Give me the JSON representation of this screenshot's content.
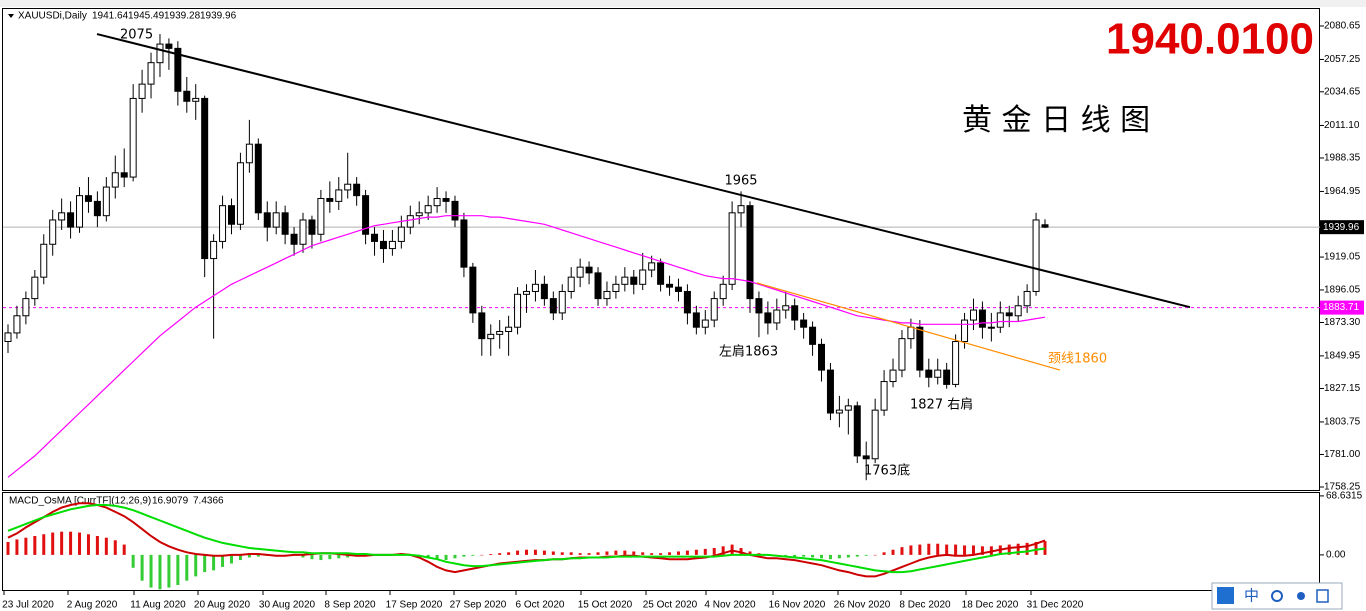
{
  "chart_data": {
    "type": "candlestick",
    "symbol": "XAUUSDi,Daily",
    "title": "黄 金 日 线 图",
    "price_banner": "1940.0100",
    "up_color": "#ffffff",
    "down_color": "#000000",
    "outline_color": "#000000",
    "ylim": [
      1758.25,
      2080.65
    ],
    "yticks": [
      2080.65,
      2057.25,
      2034.65,
      {
        "value": 2011.1,
        "label": "2011.10"
      },
      1988.35,
      1964.95,
      1919.05,
      1896.05,
      {
        "value": 1873.3,
        "label": "1873.30"
      },
      1849.95,
      1827.15,
      1803.75,
      {
        "value": 1781,
        "label": "1781.00"
      },
      1758.25
    ],
    "x_labels": [
      "23 Jul 2020",
      "2 Aug 2020",
      "11 Aug 2020",
      "20 Aug 2020",
      "30 Aug 2020",
      "8 Sep 2020",
      "17 Sep 2020",
      "27 Sep 2020",
      "6 Oct 2020",
      "15 Oct 2020",
      "25 Oct 2020",
      "4 Nov 2020",
      "16 Nov 2020",
      "26 Nov 2020",
      "8 Dec 2020",
      "18 Dec 2020",
      "31 Dec 2020"
    ],
    "ohlc": [
      [
        1860,
        1872,
        1852,
        1866
      ],
      [
        1866,
        1885,
        1862,
        1878
      ],
      [
        1878,
        1895,
        1872,
        1890
      ],
      [
        1890,
        1910,
        1885,
        1905
      ],
      [
        1905,
        1935,
        1900,
        1928
      ],
      [
        1928,
        1952,
        1920,
        1945
      ],
      [
        1945,
        1960,
        1938,
        1950
      ],
      [
        1950,
        1958,
        1932,
        1940
      ],
      [
        1940,
        1968,
        1936,
        1962
      ],
      [
        1962,
        1975,
        1950,
        1958
      ],
      [
        1958,
        1965,
        1940,
        1948
      ],
      [
        1948,
        1975,
        1944,
        1968
      ],
      [
        1968,
        1990,
        1960,
        1978
      ],
      [
        1978,
        1995,
        1968,
        1975
      ],
      [
        1975,
        2040,
        1972,
        2030
      ],
      [
        2030,
        2050,
        2020,
        2040
      ],
      [
        2040,
        2062,
        2030,
        2055
      ],
      [
        2055,
        2075,
        2045,
        2068
      ],
      [
        2068,
        2072,
        2050,
        2065
      ],
      [
        2065,
        2070,
        2025,
        2035
      ],
      [
        2035,
        2045,
        2020,
        2028
      ],
      [
        2028,
        2040,
        2015,
        2030
      ],
      [
        2030,
        2032,
        1905,
        1918
      ],
      [
        1918,
        1935,
        1862,
        1930
      ],
      [
        1930,
        1962,
        1925,
        1955
      ],
      [
        1955,
        1960,
        1935,
        1942
      ],
      [
        1942,
        1992,
        1938,
        1985
      ],
      [
        1985,
        2015,
        1978,
        1998
      ],
      [
        1998,
        2002,
        1945,
        1950
      ],
      [
        1950,
        1958,
        1930,
        1940
      ],
      [
        1940,
        1958,
        1935,
        1950
      ],
      [
        1950,
        1955,
        1928,
        1935
      ],
      [
        1935,
        1940,
        1920,
        1928
      ],
      [
        1928,
        1950,
        1922,
        1945
      ],
      [
        1945,
        1948,
        1925,
        1935
      ],
      [
        1935,
        1966,
        1930,
        1960
      ],
      [
        1960,
        1972,
        1950,
        1958
      ],
      [
        1958,
        1975,
        1952,
        1966
      ],
      [
        1966,
        1992,
        1960,
        1970
      ],
      [
        1970,
        1975,
        1955,
        1962
      ],
      [
        1962,
        1966,
        1928,
        1935
      ],
      [
        1935,
        1940,
        1920,
        1930
      ],
      [
        1930,
        1938,
        1915,
        1925
      ],
      [
        1925,
        1938,
        1920,
        1930
      ],
      [
        1930,
        1948,
        1925,
        1940
      ],
      [
        1940,
        1955,
        1935,
        1948
      ],
      [
        1948,
        1958,
        1942,
        1950
      ],
      [
        1950,
        1962,
        1945,
        1955
      ],
      [
        1955,
        1968,
        1950,
        1960
      ],
      [
        1960,
        1965,
        1950,
        1958
      ],
      [
        1958,
        1962,
        1940,
        1945
      ],
      [
        1945,
        1950,
        1905,
        1912
      ],
      [
        1912,
        1915,
        1873,
        1880
      ],
      [
        1880,
        1885,
        1850,
        1862
      ],
      [
        1862,
        1872,
        1850,
        1865
      ],
      [
        1865,
        1875,
        1855,
        1867
      ],
      [
        1867,
        1878,
        1850,
        1870
      ],
      [
        1870,
        1898,
        1865,
        1893
      ],
      [
        1893,
        1900,
        1880,
        1895
      ],
      [
        1895,
        1910,
        1888,
        1900
      ],
      [
        1900,
        1906,
        1885,
        1890
      ],
      [
        1890,
        1895,
        1875,
        1880
      ],
      [
        1880,
        1900,
        1875,
        1895
      ],
      [
        1895,
        1912,
        1890,
        1905
      ],
      [
        1905,
        1918,
        1898,
        1912
      ],
      [
        1912,
        1916,
        1900,
        1908
      ],
      [
        1908,
        1912,
        1885,
        1890
      ],
      [
        1890,
        1902,
        1885,
        1895
      ],
      [
        1895,
        1906,
        1890,
        1900
      ],
      [
        1900,
        1912,
        1895,
        1905
      ],
      [
        1905,
        1910,
        1893,
        1900
      ],
      [
        1900,
        1922,
        1896,
        1910
      ],
      [
        1910,
        1920,
        1905,
        1915
      ],
      [
        1915,
        1918,
        1895,
        1900
      ],
      [
        1900,
        1906,
        1892,
        1898
      ],
      [
        1898,
        1904,
        1888,
        1895
      ],
      [
        1895,
        1900,
        1872,
        1880
      ],
      [
        1880,
        1885,
        1865,
        1870
      ],
      [
        1870,
        1882,
        1865,
        1875
      ],
      [
        1875,
        1895,
        1870,
        1890
      ],
      [
        1890,
        1906,
        1885,
        1900
      ],
      [
        1900,
        1958,
        1896,
        1950
      ],
      [
        1950,
        1965,
        1940,
        1955
      ],
      [
        1955,
        1958,
        1880,
        1890
      ],
      [
        1890,
        1895,
        1863,
        1880
      ],
      [
        1880,
        1888,
        1865,
        1873
      ],
      [
        1873,
        1890,
        1868,
        1882
      ],
      [
        1882,
        1895,
        1876,
        1885
      ],
      [
        1885,
        1890,
        1868,
        1875
      ],
      [
        1875,
        1880,
        1862,
        1870
      ],
      [
        1870,
        1874,
        1850,
        1858
      ],
      [
        1858,
        1862,
        1832,
        1840
      ],
      [
        1840,
        1845,
        1805,
        1810
      ],
      [
        1810,
        1822,
        1800,
        1812
      ],
      [
        1812,
        1820,
        1795,
        1815
      ],
      [
        1815,
        1818,
        1775,
        1780
      ],
      [
        1780,
        1790,
        1763,
        1778
      ],
      [
        1778,
        1820,
        1775,
        1812
      ],
      [
        1812,
        1840,
        1808,
        1832
      ],
      [
        1832,
        1848,
        1828,
        1840
      ],
      [
        1840,
        1868,
        1835,
        1862
      ],
      [
        1862,
        1876,
        1855,
        1870
      ],
      [
        1870,
        1875,
        1835,
        1840
      ],
      [
        1840,
        1848,
        1828,
        1835
      ],
      [
        1835,
        1848,
        1830,
        1840
      ],
      [
        1840,
        1845,
        1827,
        1830
      ],
      [
        1830,
        1865,
        1828,
        1860
      ],
      [
        1860,
        1880,
        1855,
        1875
      ],
      [
        1875,
        1890,
        1868,
        1882
      ],
      [
        1882,
        1888,
        1862,
        1870
      ],
      [
        1870,
        1880,
        1860,
        1870
      ],
      [
        1870,
        1888,
        1866,
        1880
      ],
      [
        1880,
        1885,
        1870,
        1878
      ],
      [
        1878,
        1892,
        1874,
        1885
      ],
      [
        1885,
        1900,
        1880,
        1895
      ],
      [
        1895,
        1950,
        1892,
        1945
      ],
      [
        1941.64,
        1945.49,
        1939.28,
        1939.96
      ]
    ],
    "ma": {
      "color": "#ff00ff",
      "values": [
        1765,
        1770,
        1775,
        1780,
        1786,
        1792,
        1798,
        1804,
        1810,
        1816,
        1822,
        1828,
        1834,
        1840,
        1846,
        1852,
        1858,
        1864,
        1869,
        1874,
        1879,
        1884,
        1888,
        1892,
        1896,
        1900,
        1903,
        1906,
        1909,
        1912,
        1915,
        1918,
        1921,
        1924,
        1927,
        1929,
        1931,
        1933,
        1935,
        1937,
        1939,
        1941,
        1942,
        1943,
        1944,
        1945,
        1946,
        1947,
        1947,
        1948,
        1948,
        1948,
        1948,
        1948,
        1947,
        1947,
        1946,
        1945,
        1944,
        1943,
        1942,
        1940,
        1938,
        1936,
        1934,
        1932,
        1930,
        1928,
        1926,
        1924,
        1922,
        1920,
        1918,
        1916,
        1914,
        1912,
        1910,
        1908,
        1906,
        1905,
        1904,
        1904,
        1903,
        1902,
        1900,
        1898,
        1896,
        1894,
        1892,
        1890,
        1888,
        1886,
        1884,
        1882,
        1880,
        1878,
        1877,
        1876,
        1875,
        1874,
        1873,
        1873,
        1872,
        1872,
        1872,
        1872,
        1872,
        1872,
        1872,
        1873,
        1873,
        1874,
        1874,
        1874,
        1875,
        1876,
        1877
      ]
    },
    "trendline": {
      "color": "#000000",
      "values": [
        2075,
        1884
      ]
    },
    "neckline": {
      "color": "#ff8c00",
      "values": [
        1901,
        1840
      ]
    },
    "hline": {
      "color": "#ff00ff",
      "value": 1883.71
    },
    "annotations": [
      "2075",
      "1965",
      "左肩1863",
      "1763底",
      "1827 右肩",
      "颈线1860"
    ],
    "macd": {
      "label": "MACD_OsMA [CurrTF](12,26,9)",
      "ylim": [
        -42,
        72
      ],
      "yticks": [
        68.6315,
        {
          "value": 0,
          "label": "0.00"
        }
      ],
      "histogram": {
        "up_color": "#e01010",
        "down_color": "#33cc33",
        "values": [
          15,
          18,
          20,
          22,
          24,
          26,
          27,
          27,
          26,
          24,
          22,
          20,
          17,
          12,
          -15,
          -30,
          -38,
          -40,
          -38,
          -35,
          -30,
          -25,
          -20,
          -18,
          -14,
          -10,
          -6,
          -3,
          -2,
          -1,
          -2,
          -1,
          0,
          -3,
          -5,
          -6,
          -5,
          -4,
          -3,
          -2,
          -1,
          0,
          1,
          1,
          2,
          1,
          -1,
          -3,
          -5,
          -6,
          -4,
          -2,
          -1,
          0,
          1,
          2,
          3,
          5,
          6,
          6,
          5,
          4,
          3,
          3,
          2,
          2,
          3,
          4,
          5,
          5,
          4,
          3,
          2,
          2,
          3,
          4,
          5,
          6,
          7,
          8,
          10,
          12,
          8,
          4,
          2,
          1,
          0,
          -1,
          -2,
          -2,
          -3,
          -4,
          -5,
          -4,
          -3,
          -2,
          -1,
          0,
          3,
          6,
          9,
          11,
          12,
          13,
          13,
          12,
          12,
          11,
          11,
          10,
          10,
          11,
          12,
          13,
          14,
          15,
          16
        ]
      },
      "series": [
        {
          "color": "#cc0000",
          "values": [
            20,
            25,
            32,
            38,
            44,
            50,
            55,
            58,
            60,
            60,
            58,
            55,
            50,
            45,
            38,
            30,
            22,
            15,
            10,
            6,
            3,
            1,
            0,
            -1,
            -1,
            0,
            0,
            1,
            1,
            0,
            -1,
            -1,
            0,
            0,
            1,
            2,
            2,
            1,
            0,
            -1,
            -1,
            0,
            0,
            0,
            1,
            0,
            -3,
            -8,
            -14,
            -18,
            -20,
            -18,
            -16,
            -14,
            -12,
            -10,
            -9,
            -8,
            -7,
            -6,
            -6,
            -5,
            -5,
            -4,
            -3,
            -3,
            -3,
            -2,
            -2,
            -1,
            -1,
            -2,
            -3,
            -4,
            -5,
            -5,
            -5,
            -4,
            -3,
            -1,
            2,
            5,
            3,
            0,
            -2,
            -4,
            -4,
            -5,
            -6,
            -8,
            -10,
            -12,
            -15,
            -18,
            -20,
            -23,
            -25,
            -25,
            -22,
            -18,
            -14,
            -10,
            -6,
            -3,
            -1,
            0,
            -1,
            -1,
            0,
            2,
            4,
            6,
            8,
            9,
            10,
            13,
            16.9079
          ]
        },
        {
          "color": "#00dd00",
          "values": [
            28,
            32,
            36,
            40,
            44,
            47,
            50,
            53,
            55,
            57,
            58,
            58,
            57,
            55,
            52,
            48,
            44,
            40,
            36,
            32,
            28,
            24,
            20,
            17,
            14,
            12,
            10,
            8,
            7,
            6,
            5,
            4,
            3,
            3,
            2,
            2,
            2,
            2,
            2,
            1,
            1,
            0,
            0,
            0,
            0,
            0,
            -1,
            -3,
            -5,
            -8,
            -10,
            -12,
            -13,
            -13,
            -12,
            -11,
            -10,
            -9,
            -8,
            -7,
            -6,
            -5,
            -5,
            -4,
            -4,
            -3,
            -3,
            -3,
            -2,
            -2,
            -2,
            -2,
            -2,
            -2,
            -2,
            -2,
            -2,
            -2,
            -2,
            -2,
            -1,
            0,
            0,
            0,
            0,
            0,
            -1,
            -2,
            -3,
            -4,
            -5,
            -6,
            -8,
            -10,
            -12,
            -14,
            -16,
            -18,
            -19,
            -20,
            -20,
            -19,
            -17,
            -15,
            -13,
            -11,
            -9,
            -7,
            -5,
            -3,
            -1,
            1,
            2,
            3,
            4,
            6,
            7.4366
          ]
        }
      ]
    },
    "ime": {
      "label": "中"
    }
  }
}
